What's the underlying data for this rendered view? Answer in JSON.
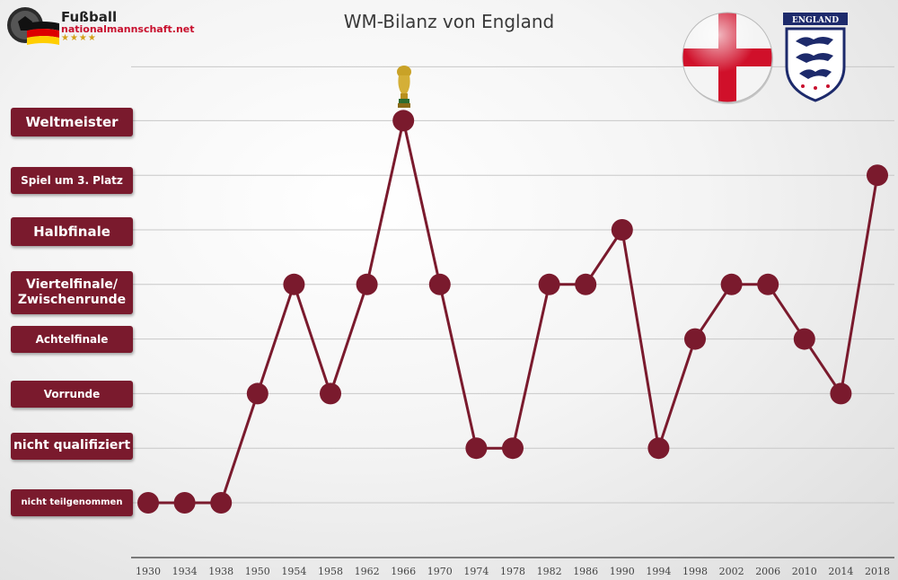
{
  "title": "WM-Bilanz von England",
  "logo": {
    "line1": "Fußball",
    "line2": "nationalmannschaft.net",
    "stars": "★★★★"
  },
  "crest_text": "ENGLAND",
  "colors": {
    "accent": "#7a1a2d",
    "line": "#7a1a2d",
    "grid": "#c8c8c8",
    "axis": "#555555"
  },
  "icons": [
    "world-cup-trophy-icon",
    "england-flag-icon",
    "england-crest-icon",
    "germany-flag-icon"
  ],
  "chart_data": {
    "type": "line",
    "title": "WM-Bilanz von England",
    "x": [
      "1930",
      "1934",
      "1938",
      "1950",
      "1954",
      "1958",
      "1962",
      "1966",
      "1970",
      "1974",
      "1978",
      "1982",
      "1986",
      "1990",
      "1994",
      "1998",
      "2002",
      "2006",
      "2010",
      "2014",
      "2018"
    ],
    "y_categories": [
      "nicht teilgenommen",
      "nicht qualifiziert",
      "Vorrunde",
      "Achtelfinale",
      "Viertelfinale/ Zwischenrunde",
      "Halbfinale",
      "Spiel um 3. Platz",
      "Weltmeister"
    ],
    "values": [
      0,
      0,
      0,
      2,
      4,
      2,
      4,
      7,
      4,
      1,
      1,
      4,
      4,
      5,
      1,
      3,
      4,
      4,
      3,
      2,
      6
    ],
    "annotation": {
      "x": "1966",
      "icon": "world-cup-trophy-icon"
    },
    "grid": true,
    "legend": "none"
  }
}
